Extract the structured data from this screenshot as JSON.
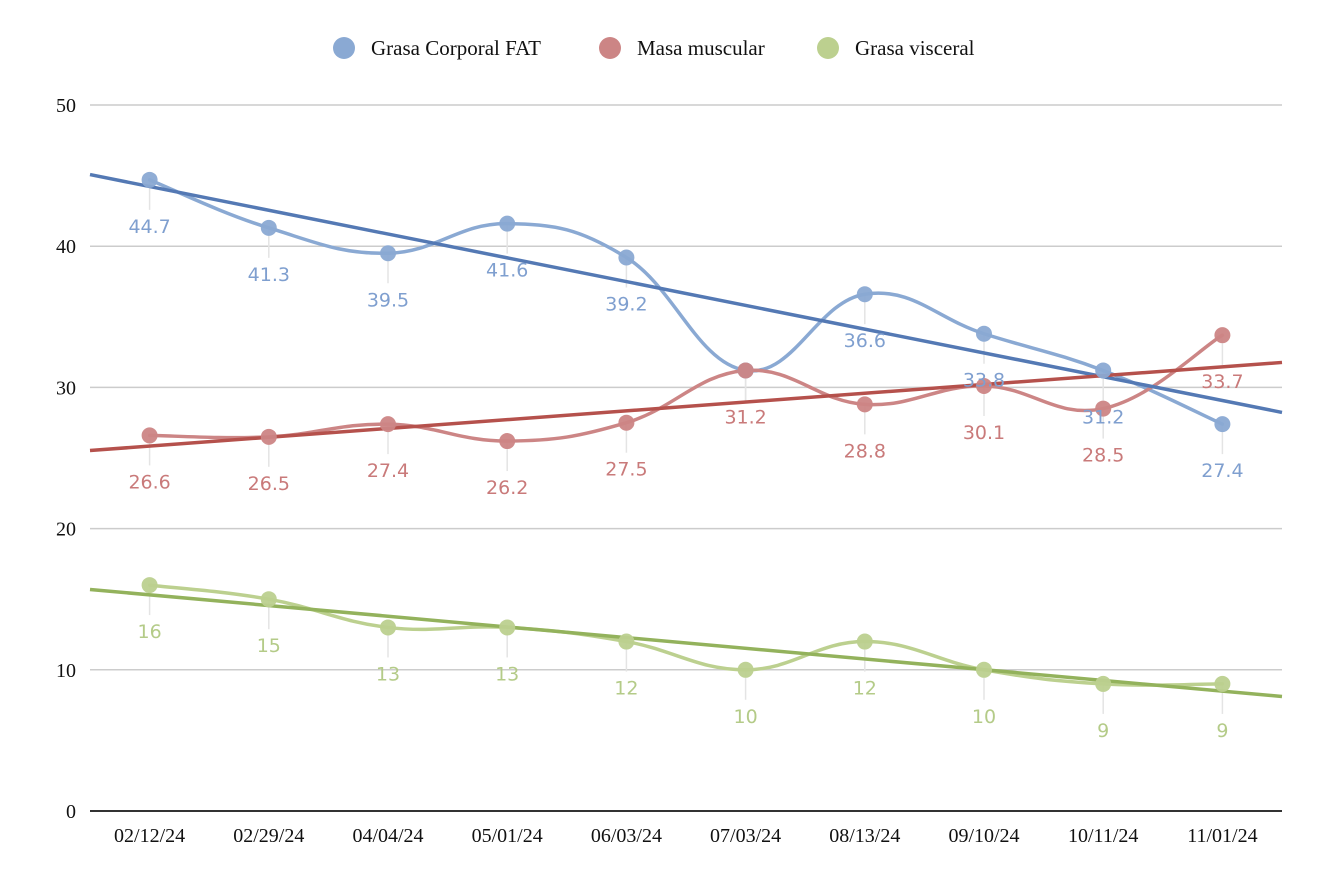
{
  "chart_data": {
    "type": "line",
    "title": "",
    "xlabel": "",
    "ylabel": "",
    "categories": [
      "02/12/24",
      "02/29/24",
      "04/04/24",
      "05/01/24",
      "06/03/24",
      "07/03/24",
      "08/13/24",
      "09/10/24",
      "10/11/24",
      "11/01/24"
    ],
    "ylim": [
      0,
      50
    ],
    "yticks": [
      0,
      10,
      20,
      30,
      40,
      50
    ],
    "grid": true,
    "legend_position": "top-center",
    "smooth": true,
    "trendlines": "linear",
    "series": [
      {
        "name": "Grasa Corporal FAT",
        "color": "#8aa9d3",
        "trend_color": "#5479b4",
        "label_color": "#7f9fcf",
        "values": [
          44.7,
          41.3,
          39.5,
          41.6,
          39.2,
          31.2,
          36.6,
          33.8,
          31.2,
          27.4
        ],
        "labels": [
          "44.7",
          "41.3",
          "39.5",
          "41.6",
          "39.2",
          "",
          "36.6",
          "33.8",
          "31.2",
          "27.4"
        ]
      },
      {
        "name": "Masa muscular",
        "color": "#cc8585",
        "trend_color": "#b5514c",
        "label_color": "#c97a7a",
        "values": [
          26.6,
          26.5,
          27.4,
          26.2,
          27.5,
          31.2,
          28.8,
          30.1,
          28.5,
          33.7
        ],
        "labels": [
          "26.6",
          "26.5",
          "27.4",
          "26.2",
          "27.5",
          "31.2",
          "28.8",
          "30.1",
          "28.5",
          "33.7"
        ]
      },
      {
        "name": "Grasa visceral",
        "color": "#bcd08f",
        "trend_color": "#93b25c",
        "label_color": "#b4cb88",
        "values": [
          16,
          15,
          13,
          13,
          12,
          10,
          12,
          10,
          9,
          9
        ],
        "labels": [
          "16",
          "15",
          "13",
          "13",
          "12",
          "10",
          "12",
          "10",
          "9",
          "9"
        ]
      }
    ]
  }
}
